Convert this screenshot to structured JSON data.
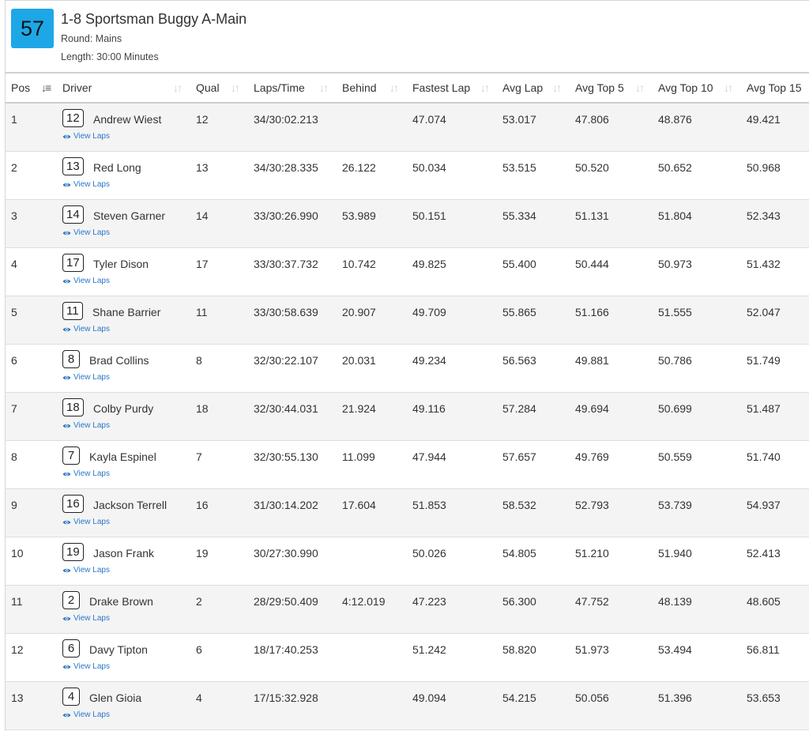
{
  "race": {
    "number": "57",
    "title": "1-8 Sportsman Buggy A-Main",
    "round": "Round: Mains",
    "length": "Length: 30:00 Minutes"
  },
  "columns": [
    "Pos",
    "Driver",
    "Qual",
    "Laps/Time",
    "Behind",
    "Fastest Lap",
    "Avg Lap",
    "Avg Top 5",
    "Avg Top 10",
    "Avg Top 15"
  ],
  "view_laps_label": "View Laps",
  "rows": [
    {
      "pos": "1",
      "car": "12",
      "driver": "Andrew Wiest",
      "qual": "12",
      "laps_time": "34/30:02.213",
      "behind": "",
      "fastest": "47.074",
      "avg": "53.017",
      "top5": "47.806",
      "top10": "48.876",
      "top15": "49.421"
    },
    {
      "pos": "2",
      "car": "13",
      "driver": "Red Long",
      "qual": "13",
      "laps_time": "34/30:28.335",
      "behind": "26.122",
      "fastest": "50.034",
      "avg": "53.515",
      "top5": "50.520",
      "top10": "50.652",
      "top15": "50.968"
    },
    {
      "pos": "3",
      "car": "14",
      "driver": "Steven Garner",
      "qual": "14",
      "laps_time": "33/30:26.990",
      "behind": "53.989",
      "fastest": "50.151",
      "avg": "55.334",
      "top5": "51.131",
      "top10": "51.804",
      "top15": "52.343"
    },
    {
      "pos": "4",
      "car": "17",
      "driver": "Tyler Dison",
      "qual": "17",
      "laps_time": "33/30:37.732",
      "behind": "10.742",
      "fastest": "49.825",
      "avg": "55.400",
      "top5": "50.444",
      "top10": "50.973",
      "top15": "51.432"
    },
    {
      "pos": "5",
      "car": "11",
      "driver": "Shane Barrier",
      "qual": "11",
      "laps_time": "33/30:58.639",
      "behind": "20.907",
      "fastest": "49.709",
      "avg": "55.865",
      "top5": "51.166",
      "top10": "51.555",
      "top15": "52.047"
    },
    {
      "pos": "6",
      "car": "8",
      "driver": "Brad Collins",
      "qual": "8",
      "laps_time": "32/30:22.107",
      "behind": "20.031",
      "fastest": "49.234",
      "avg": "56.563",
      "top5": "49.881",
      "top10": "50.786",
      "top15": "51.749"
    },
    {
      "pos": "7",
      "car": "18",
      "driver": "Colby Purdy",
      "qual": "18",
      "laps_time": "32/30:44.031",
      "behind": "21.924",
      "fastest": "49.116",
      "avg": "57.284",
      "top5": "49.694",
      "top10": "50.699",
      "top15": "51.487"
    },
    {
      "pos": "8",
      "car": "7",
      "driver": "Kayla Espinel",
      "qual": "7",
      "laps_time": "32/30:55.130",
      "behind": "11.099",
      "fastest": "47.944",
      "avg": "57.657",
      "top5": "49.769",
      "top10": "50.559",
      "top15": "51.740"
    },
    {
      "pos": "9",
      "car": "16",
      "driver": "Jackson Terrell",
      "qual": "16",
      "laps_time": "31/30:14.202",
      "behind": "17.604",
      "fastest": "51.853",
      "avg": "58.532",
      "top5": "52.793",
      "top10": "53.739",
      "top15": "54.937"
    },
    {
      "pos": "10",
      "car": "19",
      "driver": "Jason Frank",
      "qual": "19",
      "laps_time": "30/27:30.990",
      "behind": "",
      "fastest": "50.026",
      "avg": "54.805",
      "top5": "51.210",
      "top10": "51.940",
      "top15": "52.413"
    },
    {
      "pos": "11",
      "car": "2",
      "driver": "Drake Brown",
      "qual": "2",
      "laps_time": "28/29:50.409",
      "behind": "4:12.019",
      "fastest": "47.223",
      "avg": "56.300",
      "top5": "47.752",
      "top10": "48.139",
      "top15": "48.605"
    },
    {
      "pos": "12",
      "car": "6",
      "driver": "Davy Tipton",
      "qual": "6",
      "laps_time": "18/17:40.253",
      "behind": "",
      "fastest": "51.242",
      "avg": "58.820",
      "top5": "51.973",
      "top10": "53.494",
      "top15": "56.811"
    },
    {
      "pos": "13",
      "car": "4",
      "driver": "Glen Gioia",
      "qual": "4",
      "laps_time": "17/15:32.928",
      "behind": "",
      "fastest": "49.094",
      "avg": "54.215",
      "top5": "50.056",
      "top10": "51.396",
      "top15": "53.653"
    }
  ],
  "colors": {
    "badge": "#1ea7e6",
    "link": "#2a78c6",
    "stripe": "#f4f4f4"
  }
}
